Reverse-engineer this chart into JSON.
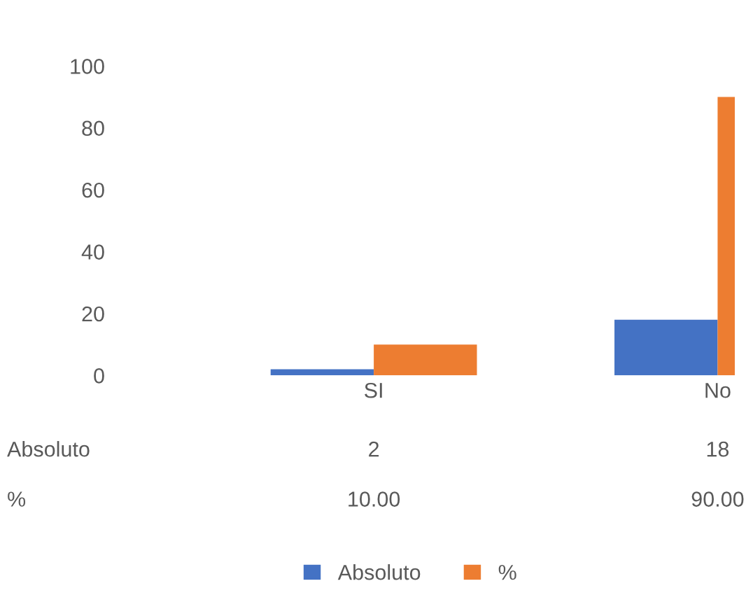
{
  "chart_data": {
    "type": "bar",
    "categories": [
      "SI",
      "No"
    ],
    "series": [
      {
        "name": "Absoluto",
        "color": "#4472c4",
        "values": [
          2,
          18
        ],
        "value_labels": [
          "2",
          "18"
        ]
      },
      {
        "name": "%",
        "color": "#ed7d31",
        "values": [
          10,
          90
        ],
        "value_labels": [
          "10.00",
          "90.00"
        ]
      }
    ],
    "ylim": [
      0,
      100
    ],
    "yticks": [
      0,
      20,
      40,
      60,
      80,
      100
    ],
    "grid": false,
    "legend": "bottom"
  }
}
